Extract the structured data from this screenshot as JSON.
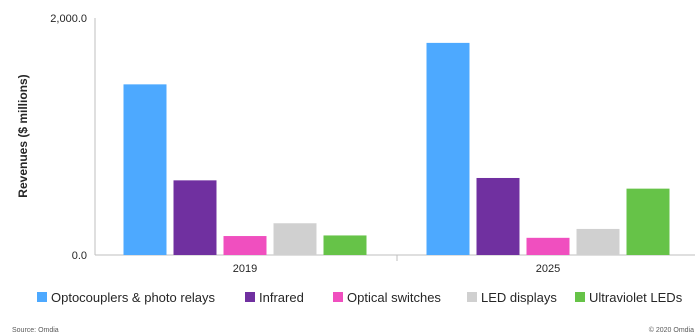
{
  "chart_data": {
    "type": "bar",
    "title": "",
    "xlabel": "",
    "ylabel": "Revenues ($ millions)",
    "ylim": [
      0,
      2000
    ],
    "y_tick_labels": [
      "0.0",
      "2,000.0"
    ],
    "y_tick_values": [
      0,
      2000
    ],
    "grid": false,
    "legend_position": "bottom",
    "categories": [
      "2019",
      "2025"
    ],
    "series": [
      {
        "name": "Optocouplers & photo relays",
        "color": "#4da9ff",
        "values": [
          1440,
          1790
        ]
      },
      {
        "name": "Infrared",
        "color": "#7030a0",
        "values": [
          630,
          650
        ]
      },
      {
        "name": "Optical switches",
        "color": "#f04fbf",
        "values": [
          160,
          145
        ]
      },
      {
        "name": "LED displays",
        "color": "#d0d0d0",
        "values": [
          268,
          220
        ]
      },
      {
        "name": "Ultraviolet LEDs",
        "color": "#66c348",
        "values": [
          165,
          560
        ]
      }
    ]
  },
  "footer": {
    "source": "Source: Omdia",
    "copyright": "© 2020 Omdia"
  }
}
